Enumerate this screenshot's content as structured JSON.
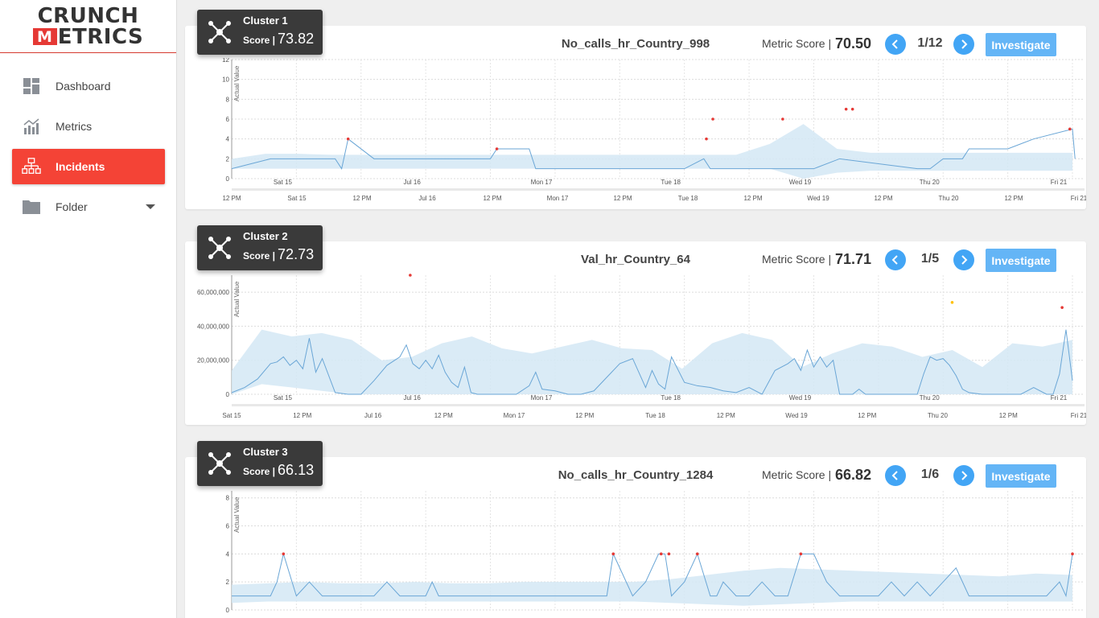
{
  "sidebar": {
    "logo_line1": "CRUNCH",
    "logo_line2_mark": "M",
    "logo_line2_rest": "ETRICS",
    "items": [
      {
        "label": "Dashboard",
        "icon": "dashboard-icon",
        "active": false
      },
      {
        "label": "Metrics",
        "icon": "metrics-icon",
        "active": false
      },
      {
        "label": "Incidents",
        "icon": "incidents-icon",
        "active": true
      },
      {
        "label": "Folder",
        "icon": "folder-icon",
        "active": false
      }
    ]
  },
  "colors": {
    "accent_red": "#f44336",
    "button_blue": "#42a5f5",
    "investigate_blue": "#64b5f6",
    "band_blue": "#d4e7f5",
    "line_blue": "#6aa6d6",
    "anomaly_red": "#e53935",
    "anomaly_yellow": "#ffc107",
    "badge_dark": "#3a3a3a"
  },
  "clusters": [
    {
      "cluster_label": "Cluster 1",
      "score_label": "Score |",
      "score_value": "73.82",
      "metric_name": "No_calls_hr_Country_998",
      "metric_score_label": "Metric Score |",
      "metric_score_value": "70.50",
      "pager": "1/12",
      "investigate_label": "Investigate"
    },
    {
      "cluster_label": "Cluster 2",
      "score_label": "Score |",
      "score_value": "72.73",
      "metric_name": "Val_hr_Country_64",
      "metric_score_label": "Metric Score |",
      "metric_score_value": "71.71",
      "pager": "1/5",
      "investigate_label": "Investigate"
    },
    {
      "cluster_label": "Cluster 3",
      "score_label": "Score |",
      "score_value": "66.13",
      "metric_name": "No_calls_hr_Country_1284",
      "metric_score_label": "Metric Score |",
      "metric_score_value": "66.82",
      "pager": "1/6",
      "investigate_label": "Investigate"
    }
  ],
  "chart_data": [
    {
      "type": "area",
      "ylabel": "Actual Value",
      "yticks": [
        "0",
        "2",
        "4",
        "6",
        "8",
        "10",
        "12"
      ],
      "ylim": [
        0,
        12
      ],
      "x_day_labels": [
        "Sat 15",
        "Jul 16",
        "Mon 17",
        "Tue 18",
        "Wed 19",
        "Thu 20",
        "Fri 21"
      ],
      "x_labels": [
        "12 PM",
        "Sat 15",
        "12 PM",
        "Jul 16",
        "12 PM",
        "Mon 17",
        "12 PM",
        "Tue 18",
        "12 PM",
        "Wed 19",
        "12 PM",
        "Thu 20",
        "12 PM",
        "Fri 21"
      ],
      "series": [
        {
          "x": [
            0,
            0.3,
            0.8,
            0.85,
            0.9,
            1.1,
            1.2,
            1.5,
            2.0,
            2.05,
            2.2,
            2.3,
            2.35,
            2.4,
            2.5,
            3.5,
            3.65,
            3.7,
            3.9,
            4.4,
            4.5,
            4.7,
            5.3,
            5.4,
            5.5,
            5.65,
            5.7,
            5.8,
            6.0,
            6.2,
            6.5,
            6.52
          ],
          "values": [
            1,
            2,
            2,
            1,
            4,
            2,
            2,
            2,
            2,
            3,
            3,
            3,
            1,
            1,
            1,
            1,
            2,
            1,
            1,
            1,
            1,
            2,
            1,
            1,
            2,
            2,
            3,
            3,
            3,
            4,
            5,
            2
          ]
        }
      ],
      "band": {
        "upper": [
          2,
          2.5,
          2.5,
          2.4,
          2.4,
          2.4,
          2.4,
          2.4,
          2.4,
          2.4,
          2.4,
          2.4,
          2.4,
          2.4,
          2.4,
          2.4,
          3.5,
          5.5,
          3,
          2.6,
          2.6,
          2.6,
          2.6,
          2.6,
          2.6,
          2.6
        ],
        "lower": [
          1,
          1,
          1,
          1,
          1,
          1,
          1,
          1,
          1,
          1,
          1,
          1,
          1,
          1,
          1,
          1,
          1,
          0,
          0.6,
          0.8,
          0.8,
          0.8,
          0.8,
          0.8,
          0.8,
          0.8
        ]
      },
      "anomalies": [
        {
          "x": 0.9,
          "value": 4
        },
        {
          "x": 2.05,
          "value": 3
        },
        {
          "x": 3.67,
          "value": 4
        },
        {
          "x": 3.72,
          "value": 6
        },
        {
          "x": 4.26,
          "value": 6
        },
        {
          "x": 4.75,
          "value": 7
        },
        {
          "x": 4.8,
          "value": 7
        },
        {
          "x": 6.48,
          "value": 5
        }
      ],
      "grid": true
    },
    {
      "type": "area",
      "ylabel": "Actual Value",
      "yticks": [
        "0",
        "20,000,000",
        "40,000,000",
        "60,000,000"
      ],
      "ylim": [
        0,
        70000000
      ],
      "x_day_labels": [
        "Sat 15",
        "Jul 16",
        "Mon 17",
        "Tue 18",
        "Wed 19",
        "Thu 20",
        "Fri 21"
      ],
      "x_labels": [
        "Sat 15",
        "12 PM",
        "Jul 16",
        "12 PM",
        "Mon 17",
        "12 PM",
        "Tue 18",
        "12 PM",
        "Wed 19",
        "12 PM",
        "Thu 20",
        "12 PM",
        "Fri 21"
      ],
      "series": [
        {
          "x": [
            0,
            0.1,
            0.2,
            0.3,
            0.35,
            0.4,
            0.45,
            0.5,
            0.55,
            0.6,
            0.65,
            0.7,
            0.8,
            0.9,
            1.0,
            1.1,
            1.2,
            1.3,
            1.35,
            1.4,
            1.45,
            1.5,
            1.55,
            1.6,
            1.65,
            1.7,
            1.75,
            1.8,
            1.85,
            1.9,
            2.0,
            2.2,
            2.3,
            2.35,
            2.4,
            2.5,
            2.6,
            2.7,
            2.8,
            3.0,
            3.1,
            3.2,
            3.25,
            3.3,
            3.35,
            3.4,
            3.5,
            3.6,
            3.7,
            3.8,
            3.9,
            4.0,
            4.1,
            4.2,
            4.3,
            4.35,
            4.4,
            4.45,
            4.5,
            4.55,
            4.6,
            4.65,
            4.7,
            4.75,
            4.8,
            4.85,
            4.9,
            5.0,
            5.1,
            5.2,
            5.3,
            5.35,
            5.4,
            5.45,
            5.5,
            5.55,
            5.6,
            5.65,
            5.7,
            5.8,
            5.9,
            6.0,
            6.1,
            6.2,
            6.3,
            6.35,
            6.4,
            6.45,
            6.5
          ],
          "values": [
            1000000,
            4000000,
            9000000,
            18000000,
            19000000,
            22000000,
            17000000,
            20000000,
            15000000,
            33000000,
            13000000,
            21000000,
            1000000,
            0,
            0,
            8000000,
            17000000,
            22000000,
            29000000,
            18000000,
            15000000,
            20000000,
            15000000,
            23000000,
            13000000,
            7000000,
            4000000,
            16000000,
            1000000,
            0,
            0,
            0,
            5000000,
            13000000,
            3000000,
            2000000,
            0,
            0,
            2000000,
            18000000,
            21000000,
            4000000,
            14000000,
            6000000,
            3000000,
            22000000,
            7000000,
            5000000,
            4000000,
            2000000,
            1000000,
            4000000,
            0,
            14000000,
            18000000,
            21000000,
            14000000,
            26000000,
            16000000,
            22000000,
            16000000,
            20000000,
            0,
            0,
            0,
            3000000,
            0,
            0,
            0,
            0,
            0,
            12000000,
            22000000,
            20000000,
            21000000,
            17000000,
            11000000,
            3000000,
            1000000,
            0,
            0,
            0,
            0,
            4000000,
            0,
            0,
            12000000,
            38000000,
            8000000
          ],
          "name": ""
        }
      ],
      "band": {
        "upper": [
          14000000,
          38000000,
          34000000,
          36000000,
          32000000,
          20000000,
          22000000,
          30000000,
          34000000,
          27000000,
          24000000,
          28000000,
          32000000,
          27000000,
          26000000,
          15000000,
          30000000,
          36000000,
          32000000,
          16000000,
          24000000,
          30000000,
          28000000,
          22000000,
          26000000,
          16000000,
          30000000,
          28000000,
          32000000
        ],
        "lower": [
          0,
          6000000,
          4000000,
          2000000,
          0,
          0,
          0,
          0,
          0,
          0,
          0,
          0,
          0,
          0,
          0,
          0,
          0,
          0,
          0,
          0,
          0,
          0,
          0,
          0,
          0,
          0,
          0,
          0,
          0
        ]
      },
      "anomalies": [
        {
          "x": 1.38,
          "value": 72000000
        },
        {
          "x": 5.57,
          "value": 54000000
        },
        {
          "x": 6.42,
          "value": 51000000
        }
      ],
      "grid": true
    },
    {
      "type": "area",
      "ylabel": "Actual Value",
      "yticks": [
        "0",
        "2",
        "4",
        "6",
        "8"
      ],
      "ylim": [
        0,
        8.5
      ],
      "x_labels": [],
      "series": [
        {
          "x": [
            0,
            0.25,
            0.3,
            0.35,
            0.4,
            0.5,
            0.6,
            0.7,
            1.0,
            1.1,
            1.2,
            1.3,
            1.5,
            1.55,
            1.6,
            1.65,
            1.7,
            1.8,
            2.0,
            2.2,
            2.8,
            2.9,
            2.95,
            3.0,
            3.1,
            3.2,
            3.3,
            3.35,
            3.4,
            3.5,
            3.6,
            3.7,
            3.75,
            3.8,
            3.9,
            4.0,
            4.1,
            4.2,
            4.3,
            4.4,
            4.5,
            4.6,
            4.7,
            4.9,
            5.0,
            5.1,
            5.2,
            5.3,
            5.4,
            5.5,
            5.6,
            5.7,
            5.8,
            6.0,
            6.1,
            6.2,
            6.3,
            6.4,
            6.45,
            6.5
          ],
          "values": [
            1,
            1,
            1,
            2,
            4,
            1,
            2,
            1,
            1,
            1,
            2,
            1,
            1,
            2,
            1,
            1,
            1,
            1,
            1,
            1,
            1,
            1,
            4,
            3,
            1,
            2,
            4,
            4,
            1,
            2,
            4,
            1,
            1,
            2,
            1,
            1,
            2,
            1,
            1,
            4,
            4,
            2,
            1,
            1,
            1,
            2,
            1,
            2,
            1,
            2,
            3,
            1,
            1,
            1,
            1,
            1,
            1,
            2,
            1,
            4
          ]
        }
      ],
      "band": {
        "upper": [
          1.8,
          1.9,
          2,
          1.9,
          1.9,
          2,
          1.9,
          1.9,
          2,
          2,
          2,
          2,
          2.2,
          2.5,
          2.8,
          3,
          2.9,
          2.8,
          2.7,
          2.6,
          2.5,
          2.4,
          2.6,
          2.5
        ],
        "lower": [
          0.5,
          0.6,
          0.6,
          0.6,
          0.6,
          0.6,
          0.6,
          0.6,
          0.6,
          0.6,
          0.6,
          0.6,
          0.5,
          0.4,
          0.3,
          0.4,
          0.5,
          0.6,
          0.6,
          0.6,
          0.6,
          0.6,
          0.6,
          0.6
        ]
      },
      "anomalies": [
        {
          "x": 0.4,
          "value": 4
        },
        {
          "x": 2.95,
          "value": 4
        },
        {
          "x": 3.32,
          "value": 4
        },
        {
          "x": 3.38,
          "value": 4
        },
        {
          "x": 3.6,
          "value": 4
        },
        {
          "x": 4.4,
          "value": 4
        },
        {
          "x": 6.5,
          "value": 4
        }
      ],
      "grid": true
    }
  ]
}
